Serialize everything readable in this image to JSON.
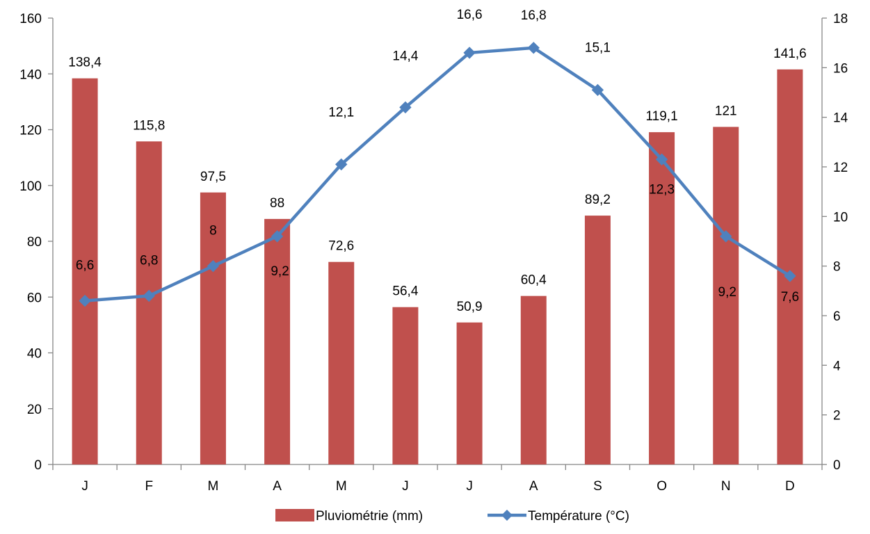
{
  "chart_data": {
    "type": "bar",
    "categories": [
      "J",
      "F",
      "M",
      "A",
      "M",
      "J",
      "J",
      "A",
      "S",
      "O",
      "N",
      "D"
    ],
    "series": [
      {
        "name": "Pluviométrie (mm)",
        "type": "bar",
        "axis": "left",
        "color": "#C0504D",
        "values": [
          138.4,
          115.8,
          97.5,
          88,
          72.6,
          56.4,
          50.9,
          60.4,
          89.2,
          119.1,
          121,
          141.6
        ],
        "labels": [
          "138,4",
          "115,8",
          "97,5",
          "88",
          "72,6",
          "56,4",
          "50,9",
          "60,4",
          "89,2",
          "119,1",
          "121",
          "141,6"
        ]
      },
      {
        "name": "Température (°C)",
        "type": "line",
        "axis": "right",
        "color": "#4F81BD",
        "marker": "diamond",
        "values": [
          6.6,
          6.8,
          8,
          9.2,
          12.1,
          14.4,
          16.6,
          16.8,
          15.1,
          12.3,
          9.2,
          7.6
        ],
        "labels": [
          "6,6",
          "6,8",
          "8",
          "9,2",
          "12,1",
          "14,4",
          "16,6",
          "16,8",
          "15,1",
          "12,3",
          "9,2",
          "7,6"
        ]
      }
    ],
    "y_left": {
      "min": 0,
      "max": 160,
      "step": 20,
      "ticks": [
        "0",
        "20",
        "40",
        "60",
        "80",
        "100",
        "120",
        "140",
        "160"
      ]
    },
    "y_right": {
      "min": 0,
      "max": 18,
      "step": 2,
      "ticks": [
        "0",
        "2",
        "4",
        "6",
        "8",
        "10",
        "12",
        "14",
        "16",
        "18"
      ]
    },
    "title": "",
    "xlabel": "",
    "ylabel": "",
    "grid": false,
    "legend_position": "bottom"
  },
  "colors": {
    "axis": "#868686",
    "bar": "#C0504D",
    "line": "#4F81BD",
    "text": "#000000"
  }
}
